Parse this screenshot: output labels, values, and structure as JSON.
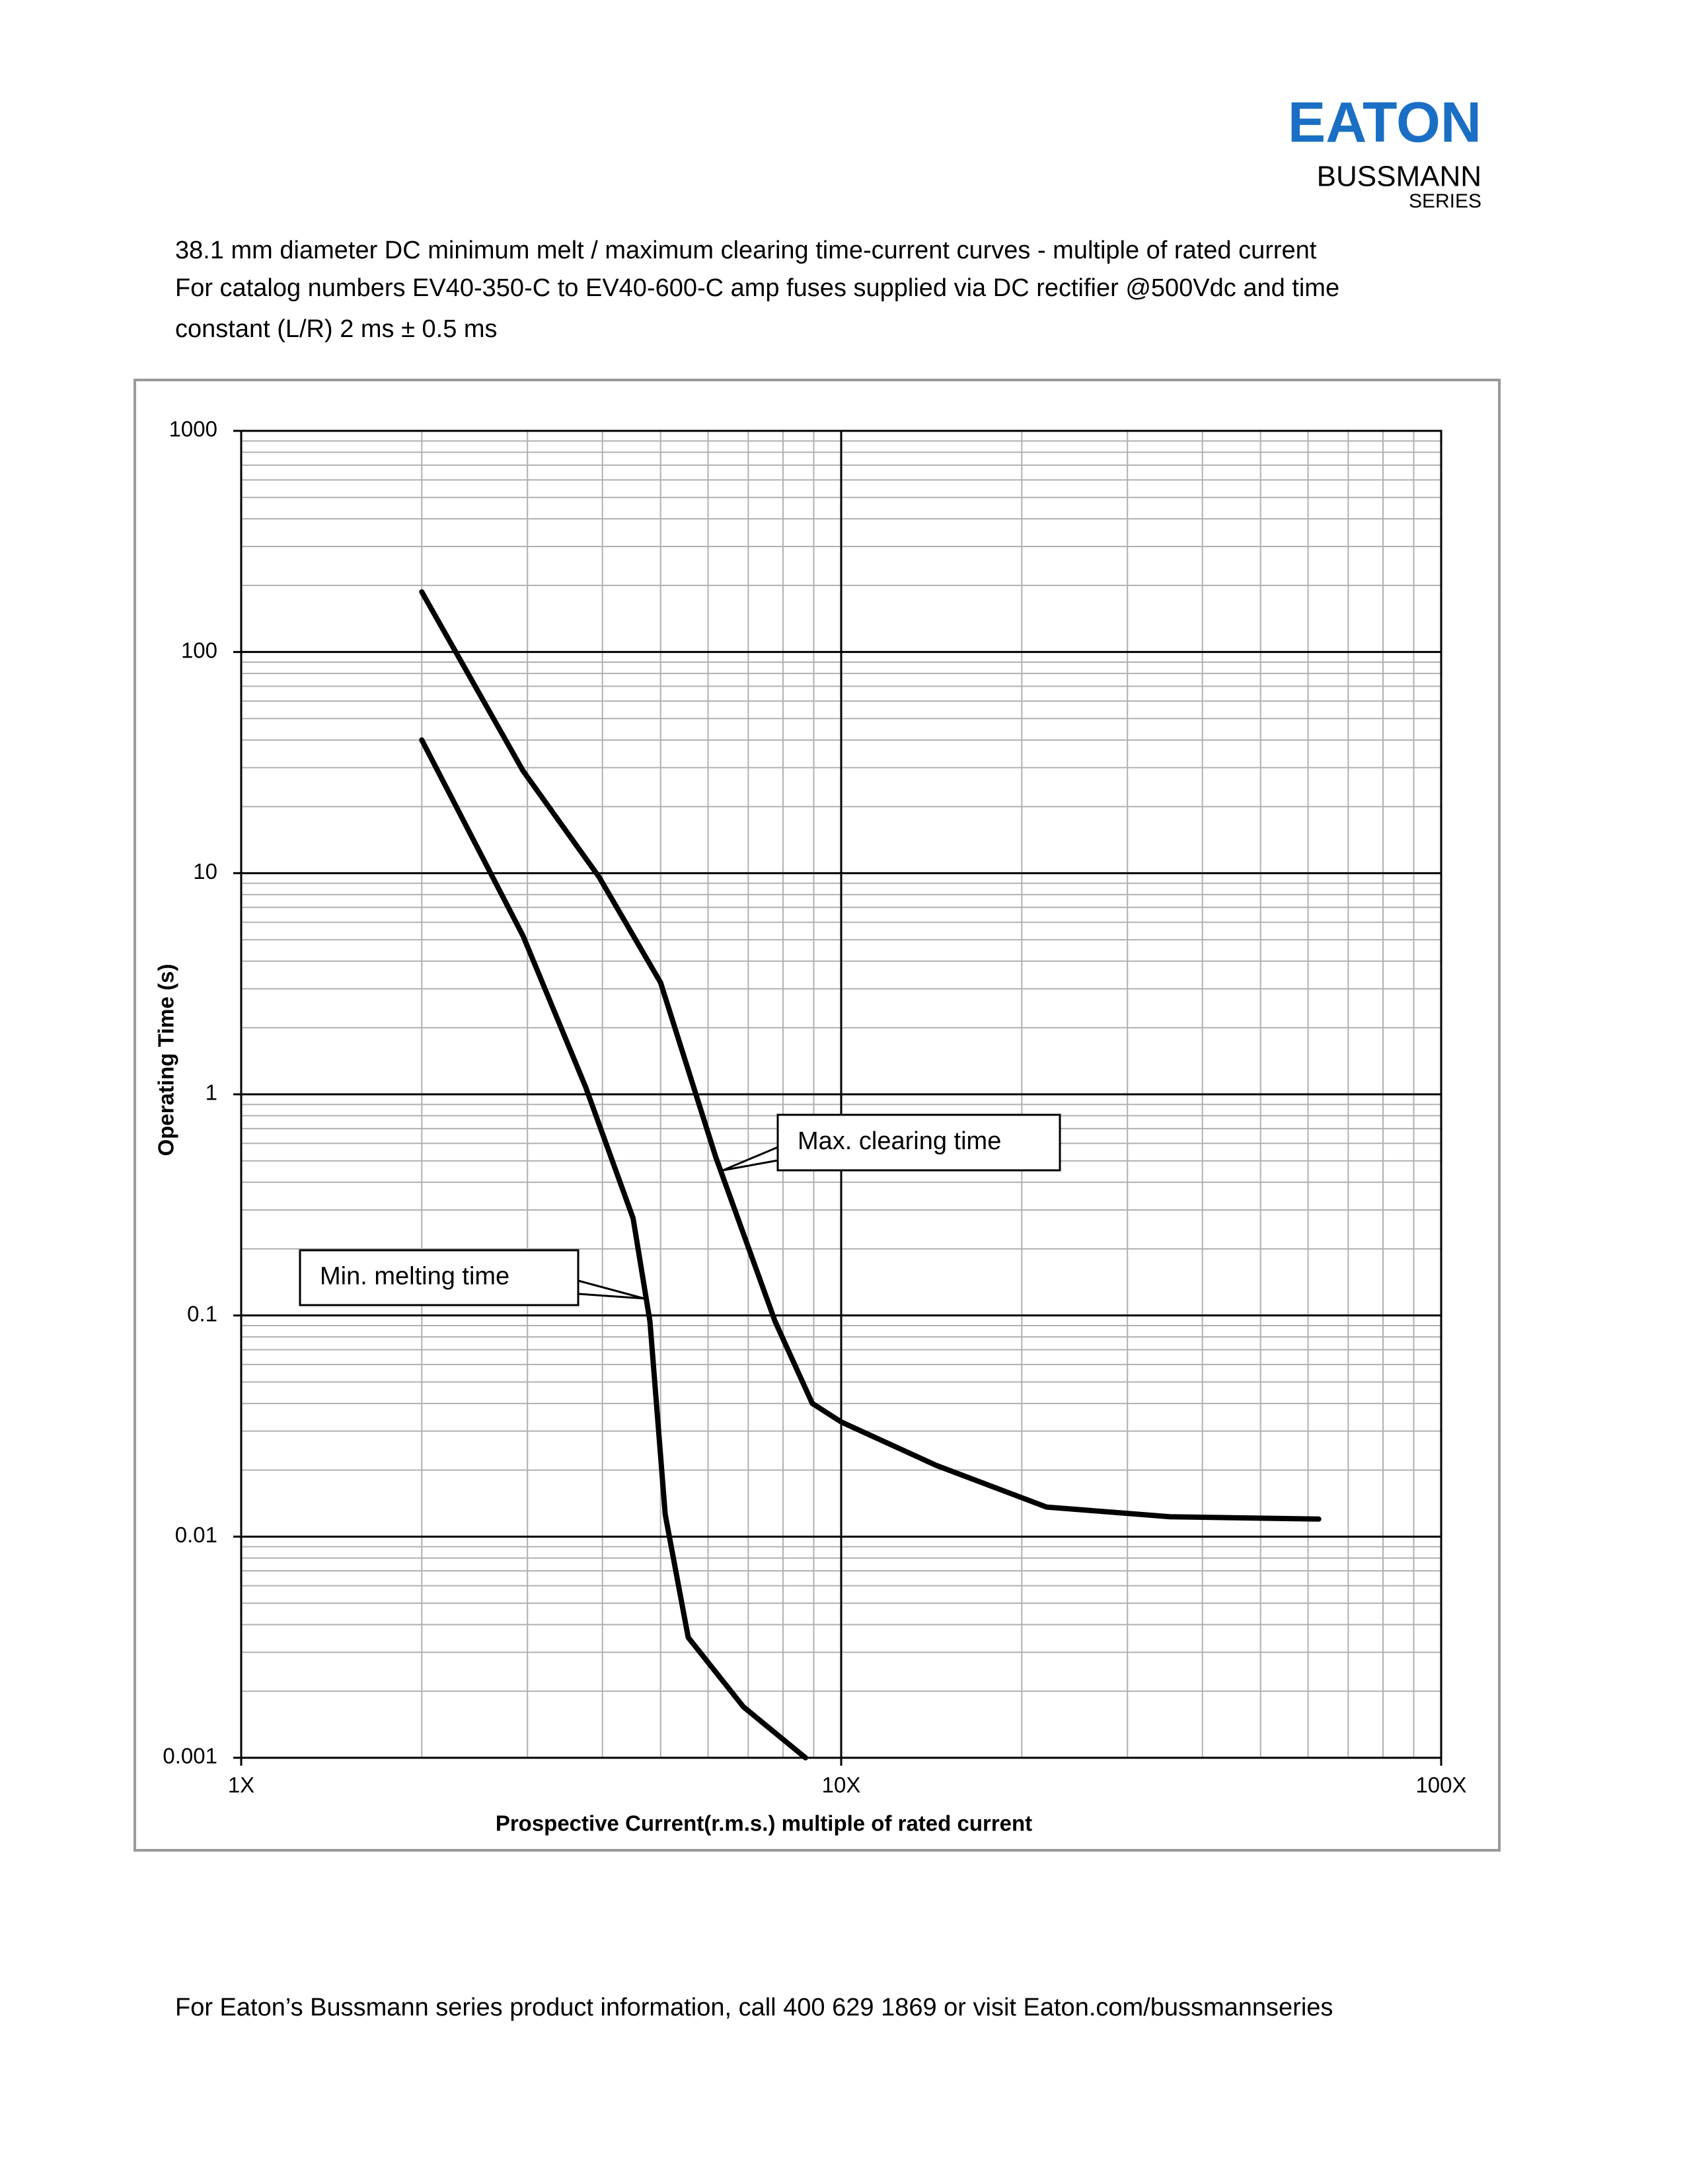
{
  "header": {
    "brand": "EATON",
    "line": "BUSSMANN",
    "series": "SERIES"
  },
  "chart_data": {
    "type": "line",
    "title": "38.1 mm diameter DC minimum melt / maximum clearing time-current curves - multiple of rated current",
    "subtitle": [
      "For catalog numbers EV40-350-C to EV40-600-C amp fuses supplied via DC rectifier @500Vdc and time",
      "constant (L/R) 2 ms ± 0.5 ms"
    ],
    "x_label": "Prospective Current(r.m.s.) multiple of rated current",
    "y_label": "Operating Time (s)",
    "xscale": "log",
    "yscale": "log",
    "grid": true,
    "minor_grid": true,
    "xlim": [
      1,
      100
    ],
    "xticks": [
      {
        "value": 1,
        "label": "1X"
      },
      {
        "value": 10,
        "label": "10X"
      },
      {
        "value": 100,
        "label": "100X"
      }
    ],
    "ylim": [
      0.001,
      1000
    ],
    "yticks": [
      0.001,
      0.01,
      0.1,
      1,
      10,
      100,
      1000
    ],
    "series": [
      {
        "name": "Max. clearing time",
        "color": "#000000",
        "x": [
          2.0,
          2.95,
          3.95,
          5.0,
          6.18,
          7.76,
          8.95,
          10,
          14.4,
          22,
          35.3,
          62.5
        ],
        "values": [
          187,
          29,
          9.6,
          3.2,
          0.52,
          0.094,
          0.04,
          0.033,
          0.021,
          0.0136,
          0.0123,
          0.012
        ]
      },
      {
        "name": "Min. melting time",
        "color": "#000000",
        "x": [
          2.0,
          2.95,
          3.75,
          4.5,
          4.8,
          5.09,
          5.56,
          6.87,
          8.72
        ],
        "values": [
          40,
          5.2,
          1.08,
          0.275,
          0.094,
          0.0126,
          0.0035,
          0.0017,
          0.001
        ]
      }
    ]
  },
  "footer": "For Eaton’s Bussmann series product information, call 400 629 1869 or visit Eaton.com/bussmannseries"
}
